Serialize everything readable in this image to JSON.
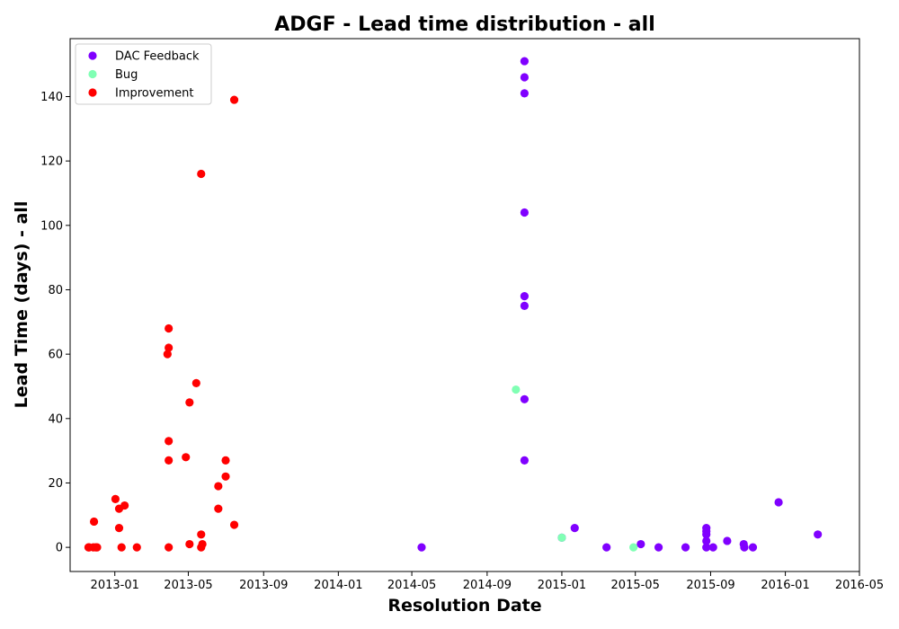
{
  "chart_data": {
    "type": "scatter",
    "title": "ADGF - Lead time distribution - all",
    "xlabel": "Resolution Date",
    "ylabel": "Lead Time (days) - all",
    "xlim": [
      "2012-10-20",
      "2016-05-01"
    ],
    "ylim": [
      -7.5,
      158
    ],
    "x_ticks": [
      "2013-01",
      "2013-05",
      "2013-09",
      "2014-01",
      "2014-05",
      "2014-09",
      "2015-01",
      "2015-05",
      "2015-09",
      "2016-01",
      "2016-05"
    ],
    "y_ticks": [
      0,
      20,
      40,
      60,
      80,
      100,
      120,
      140
    ],
    "grid": false,
    "legend_position": "top-left",
    "series": [
      {
        "name": "DAC Feedback",
        "color": "#8000ff",
        "points": [
          [
            "2014-11-01",
            151
          ],
          [
            "2014-11-01",
            146
          ],
          [
            "2014-11-01",
            141
          ],
          [
            "2014-11-01",
            104
          ],
          [
            "2014-11-01",
            78
          ],
          [
            "2014-11-01",
            75
          ],
          [
            "2014-11-01",
            46
          ],
          [
            "2014-11-01",
            27
          ],
          [
            "2014-05-17",
            0
          ],
          [
            "2015-01-01",
            3
          ],
          [
            "2015-01-22",
            6
          ],
          [
            "2015-03-15",
            0
          ],
          [
            "2015-05-10",
            1
          ],
          [
            "2015-06-08",
            0
          ],
          [
            "2015-07-22",
            0
          ],
          [
            "2015-08-25",
            6
          ],
          [
            "2015-08-25",
            5
          ],
          [
            "2015-08-25",
            4
          ],
          [
            "2015-08-25",
            2
          ],
          [
            "2015-08-25",
            0
          ],
          [
            "2015-09-05",
            0
          ],
          [
            "2015-09-28",
            2
          ],
          [
            "2015-10-25",
            1
          ],
          [
            "2015-10-26",
            0
          ],
          [
            "2015-11-09",
            0
          ],
          [
            "2015-12-21",
            14
          ],
          [
            "2016-02-23",
            4
          ]
        ]
      },
      {
        "name": "Bug",
        "color": "#80ffb4",
        "points": [
          [
            "2014-10-18",
            49
          ],
          [
            "2015-01-01",
            3
          ],
          [
            "2015-04-28",
            0
          ]
        ]
      },
      {
        "name": "Improvement",
        "color": "#ff0000",
        "points": [
          [
            "2012-11-19",
            0
          ],
          [
            "2012-11-20",
            0
          ],
          [
            "2012-11-27",
            0
          ],
          [
            "2012-11-28",
            8
          ],
          [
            "2012-12-01",
            0
          ],
          [
            "2012-12-03",
            0
          ],
          [
            "2013-01-02",
            15
          ],
          [
            "2013-01-08",
            12
          ],
          [
            "2013-01-08",
            6
          ],
          [
            "2013-01-12",
            0
          ],
          [
            "2013-01-17",
            13
          ],
          [
            "2013-02-06",
            0
          ],
          [
            "2013-03-28",
            60
          ],
          [
            "2013-03-30",
            68
          ],
          [
            "2013-03-30",
            62
          ],
          [
            "2013-03-30",
            33
          ],
          [
            "2013-03-30",
            27
          ],
          [
            "2013-03-30",
            0
          ],
          [
            "2013-04-27",
            28
          ],
          [
            "2013-05-03",
            45
          ],
          [
            "2013-05-03",
            1
          ],
          [
            "2013-05-14",
            51
          ],
          [
            "2013-05-22",
            116
          ],
          [
            "2013-05-22",
            4
          ],
          [
            "2013-05-22",
            0
          ],
          [
            "2013-05-24",
            1
          ],
          [
            "2013-06-19",
            19
          ],
          [
            "2013-06-19",
            12
          ],
          [
            "2013-07-01",
            27
          ],
          [
            "2013-07-01",
            22
          ],
          [
            "2013-07-15",
            139
          ],
          [
            "2013-07-15",
            7
          ]
        ]
      }
    ]
  }
}
